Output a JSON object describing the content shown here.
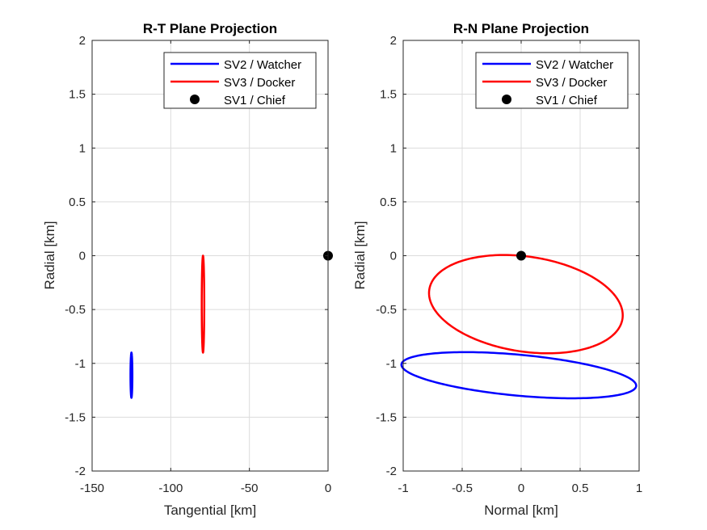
{
  "chart_data": [
    {
      "type": "line",
      "title": "R-T Plane Projection",
      "xlabel": "Tangential [km]",
      "ylabel": "Radial [km]",
      "xlim": [
        -150,
        0
      ],
      "ylim": [
        -2,
        2
      ],
      "xticks": [
        -150,
        -100,
        -50,
        0
      ],
      "xtick_labels": [
        "-150",
        "-100",
        "-50",
        "0"
      ],
      "yticks": [
        2,
        1.5,
        1,
        0.5,
        0,
        -0.5,
        -1,
        -1.5,
        -2
      ],
      "ytick_labels": [
        "2",
        "1.5",
        "1",
        "0.5",
        "0",
        "-0.5",
        "-1",
        "-1.5",
        "-2"
      ],
      "grid": true,
      "legend_position": "top-right",
      "series": [
        {
          "name": "SV2 / Watcher",
          "color": "#0000ff",
          "kind": "line",
          "ellipse": {
            "cx": -125,
            "cy": -1.11,
            "rx": 0.6,
            "ry": 0.21,
            "rotation_deg": 0
          }
        },
        {
          "name": "SV3 / Docker",
          "color": "#ff0000",
          "kind": "line",
          "ellipse": {
            "cx": -79.5,
            "cy": -0.45,
            "rx": 0.8,
            "ry": 0.45,
            "rotation_deg": 0
          }
        },
        {
          "name": "SV1 / Chief",
          "color": "#000000",
          "kind": "marker",
          "points": [
            [
              0,
              0
            ]
          ]
        }
      ]
    },
    {
      "type": "line",
      "title": "R-N Plane Projection",
      "xlabel": "Normal [km]",
      "ylabel": "Radial [km]",
      "xlim": [
        -1,
        1
      ],
      "ylim": [
        -2,
        2
      ],
      "xticks": [
        -1,
        -0.5,
        0,
        0.5,
        1
      ],
      "xtick_labels": [
        "-1",
        "-0.5",
        "0",
        "0.5",
        "1"
      ],
      "yticks": [
        2,
        1.5,
        1,
        0.5,
        0,
        -0.5,
        -1,
        -1.5,
        -2
      ],
      "ytick_labels": [
        "2",
        "1.5",
        "1",
        "0.5",
        "0",
        "-0.5",
        "-1",
        "-1.5",
        "-2"
      ],
      "grid": true,
      "legend_position": "top-right",
      "series": [
        {
          "name": "SV2 / Watcher",
          "color": "#0000ff",
          "kind": "line",
          "ellipse": {
            "cx": -0.02,
            "cy": -1.11,
            "rx": 1.0,
            "ry": 0.19,
            "rotation_deg": -5.8
          }
        },
        {
          "name": "SV3 / Docker",
          "color": "#ff0000",
          "kind": "line",
          "ellipse": {
            "cx": 0.04,
            "cy": -0.45,
            "rx": 0.83,
            "ry": 0.44,
            "rotation_deg": -10
          }
        },
        {
          "name": "SV1 / Chief",
          "color": "#000000",
          "kind": "marker",
          "points": [
            [
              0,
              0
            ]
          ]
        }
      ]
    }
  ]
}
